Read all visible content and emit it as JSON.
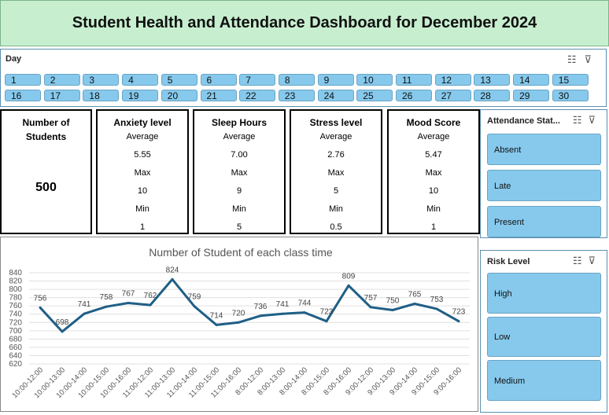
{
  "title": "Student Health and Attendance Dashboard for December 2024",
  "day_slicer": {
    "header": "Day",
    "days": [
      "1",
      "2",
      "3",
      "4",
      "5",
      "6",
      "7",
      "8",
      "9",
      "10",
      "11",
      "12",
      "13",
      "14",
      "15",
      "16",
      "17",
      "18",
      "19",
      "20",
      "21",
      "22",
      "23",
      "24",
      "25",
      "26",
      "27",
      "28",
      "29",
      "30"
    ]
  },
  "kpis": {
    "students": {
      "label_line1": "Number of",
      "label_line2": "Students",
      "value": "500"
    },
    "anxiety": {
      "label": "Anxiety level",
      "avg_label": "Average",
      "avg": "5.55",
      "max_label": "Max",
      "max": "10",
      "min_label": "Min",
      "min": "1"
    },
    "sleep": {
      "label": "Sleep Hours",
      "avg_label": "Average",
      "avg": "7.00",
      "max_label": "Max",
      "max": "9",
      "min_label": "Min",
      "min": "5"
    },
    "stress": {
      "label": "Stress level",
      "avg_label": "Average",
      "avg": "2.76",
      "max_label": "Max",
      "max": "5",
      "min_label": "Min",
      "min": "0.5"
    },
    "mood": {
      "label": "Mood Score",
      "avg_label": "Average",
      "avg": "5.47",
      "max_label": "Max",
      "max": "10",
      "min_label": "Min",
      "min": "1"
    }
  },
  "attendance_slicer": {
    "header": "Attendance Stat...",
    "options": [
      "Absent",
      "Late",
      "Present"
    ]
  },
  "risk_slicer": {
    "header": "Risk Level",
    "options": [
      "High",
      "Low",
      "Medium"
    ]
  },
  "colors": {
    "line": "#1f5f86",
    "slicer_item": "#86c9ec",
    "title_bg": "#c7efcf"
  },
  "chart_data": {
    "type": "line",
    "title": "Number of Student of each class time",
    "categories": [
      "10:00-12:00",
      "10:00-13:00",
      "10:00-14:00",
      "10:00-15:00",
      "10:00-16:00",
      "11:00-12:00",
      "11:00-13:00",
      "11:00-14:00",
      "11:00-15:00",
      "11:00-16:00",
      "8:00-12:00",
      "8:00-13:00",
      "8:00-14:00",
      "8:00-15:00",
      "8:00-16:00",
      "9:00-12:00",
      "9:00-13:00",
      "9:00-14:00",
      "9:00-15:00",
      "9:00-16:00"
    ],
    "values": [
      756,
      698,
      741,
      758,
      767,
      762,
      824,
      759,
      714,
      720,
      736,
      741,
      744,
      723,
      809,
      757,
      750,
      765,
      753,
      723
    ],
    "ylim": [
      620,
      840
    ],
    "yticks": [
      620,
      640,
      660,
      680,
      700,
      720,
      740,
      760,
      780,
      800,
      820,
      840
    ],
    "grid": true
  }
}
